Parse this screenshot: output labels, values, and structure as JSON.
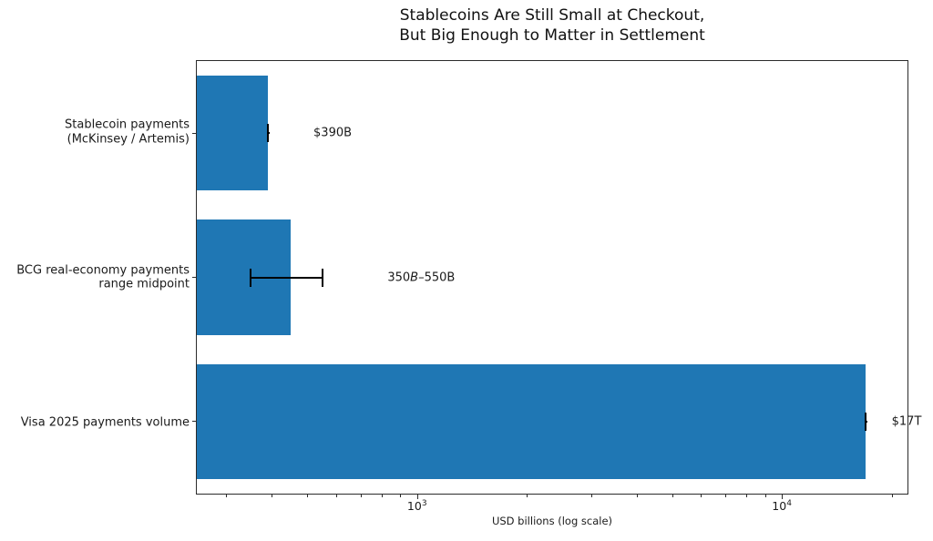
{
  "chart": {
    "title_lines": [
      "Stablecoins Are Still Small at Checkout,",
      "But Big Enough to Matter in Settlement"
    ],
    "xlabel": "USD billions (log scale)"
  },
  "chart_data": {
    "type": "bar",
    "orientation": "horizontal",
    "title": "Stablecoins Are Still Small at Checkout,\nBut Big Enough to Matter in Settlement",
    "xlabel": "USD billions (log scale)",
    "x_scale": "log",
    "xlim": [
      249,
      22100
    ],
    "grid": false,
    "legend": "none",
    "bar_color": "#1f77b4",
    "error_color": "#000000",
    "bar_height_fraction": 0.8,
    "x_major_ticks": [
      {
        "value": 1000,
        "base": "10",
        "exponent": "3"
      },
      {
        "value": 10000,
        "base": "10",
        "exponent": "4"
      }
    ],
    "minor_tick_decades": [
      100,
      1000,
      10000
    ],
    "categories": [
      "Stablecoin payments (McKinsey / Artemis)",
      "BCG real-economy payments range midpoint",
      "Visa 2025 payments volume"
    ],
    "bars": [
      {
        "label_lines": [
          "Stablecoin payments",
          "(McKinsey / Artemis)"
        ],
        "value": 390,
        "err_low": 390,
        "err_high": 390,
        "annotation_parts": [
          {
            "text": "$390B",
            "italic": false
          }
        ],
        "annotation_x": 520
      },
      {
        "label_lines": [
          "BCG real-economy payments",
          "range midpoint"
        ],
        "value": 450,
        "err_low": 350,
        "err_high": 550,
        "annotation_parts": [
          {
            "text": "350",
            "italic": false
          },
          {
            "text": "B",
            "italic": true
          },
          {
            "text": "–550B",
            "italic": false
          }
        ],
        "annotation_x": 830
      },
      {
        "label_lines": [
          "Visa 2025 payments volume"
        ],
        "value": 17000,
        "err_low": 17000,
        "err_high": 17000,
        "annotation_parts": [
          {
            "text": "$17T",
            "italic": false
          }
        ],
        "annotation_x": 20000
      }
    ]
  }
}
